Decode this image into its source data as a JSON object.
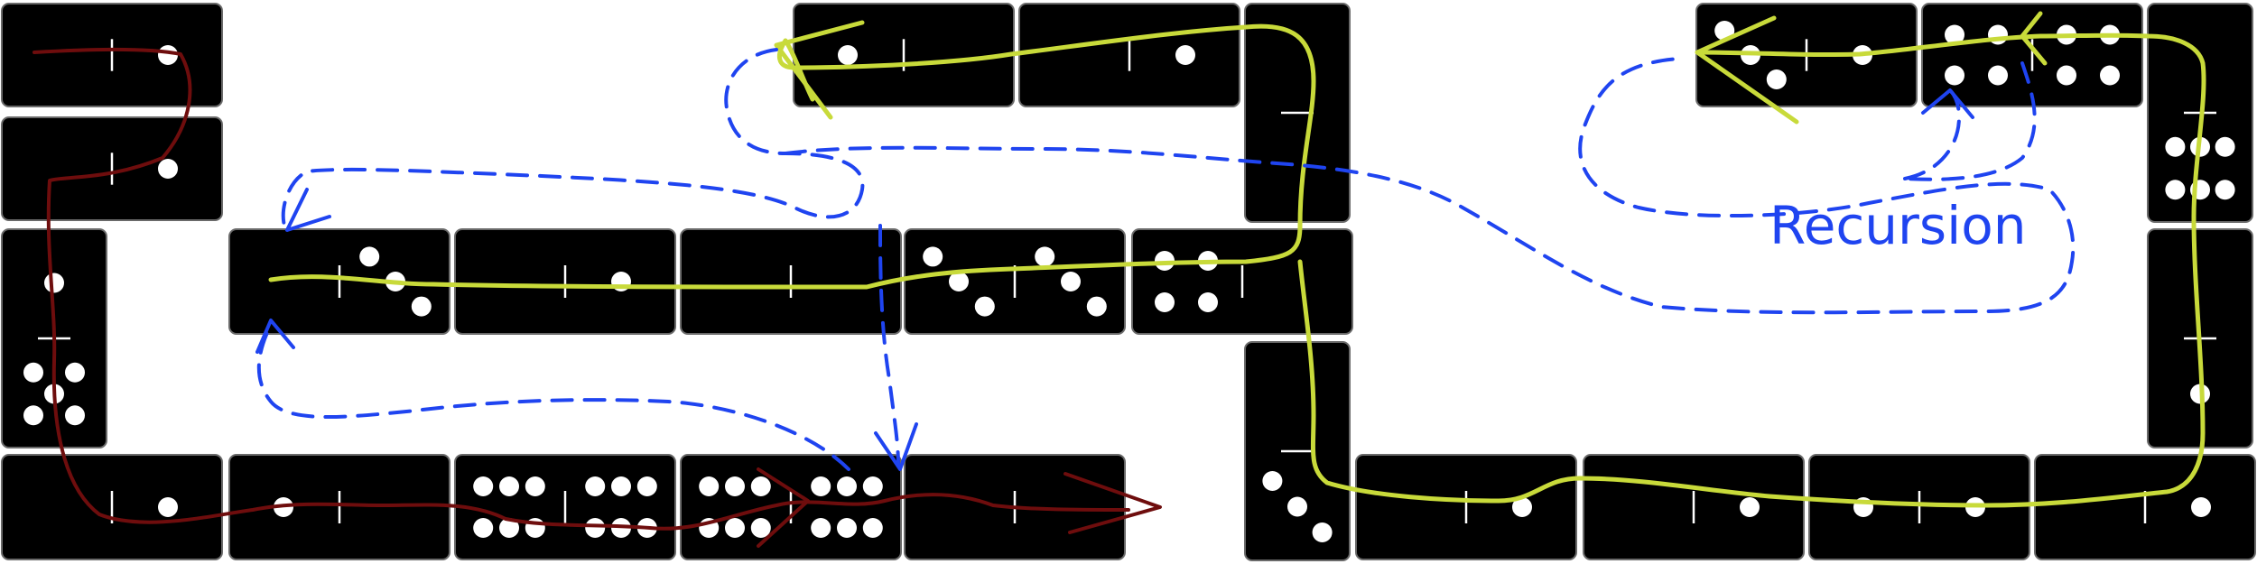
{
  "annotations": {
    "recursion_label": "Recursion"
  },
  "colors": {
    "domino": "#000000",
    "pip": "#ffffff",
    "green_path": "#c8da3a",
    "blue_path": "#1f44f0",
    "red_path": "#6e0d0d"
  },
  "dominoes": [
    {
      "id": "a1",
      "orientation": "h",
      "pips": [
        0,
        1
      ]
    },
    {
      "id": "a2",
      "orientation": "h",
      "pips": [
        0,
        1
      ]
    },
    {
      "id": "a3",
      "orientation": "v",
      "pips": [
        1,
        5
      ]
    },
    {
      "id": "a4",
      "orientation": "h",
      "pips": [
        0,
        1
      ]
    },
    {
      "id": "a5",
      "orientation": "h",
      "pips": [
        1,
        0
      ]
    },
    {
      "id": "a6",
      "orientation": "h",
      "pips": [
        6,
        6
      ]
    },
    {
      "id": "a7",
      "orientation": "h",
      "pips": [
        6,
        6
      ]
    },
    {
      "id": "a8",
      "orientation": "h",
      "pips": [
        0,
        0
      ]
    },
    {
      "id": "b1",
      "orientation": "h",
      "pips": [
        0,
        3
      ]
    },
    {
      "id": "b2",
      "orientation": "h",
      "pips": [
        0,
        1
      ]
    },
    {
      "id": "b3",
      "orientation": "h",
      "pips": [
        0,
        0
      ]
    },
    {
      "id": "b4",
      "orientation": "h",
      "pips": [
        3,
        3
      ]
    },
    {
      "id": "b5",
      "orientation": "h",
      "pips": [
        4,
        0
      ]
    },
    {
      "id": "c1",
      "orientation": "h",
      "pips": [
        1,
        0
      ]
    },
    {
      "id": "c2",
      "orientation": "h",
      "pips": [
        0,
        1
      ]
    },
    {
      "id": "c3",
      "orientation": "v",
      "pips": [
        0,
        0
      ]
    },
    {
      "id": "c4",
      "orientation": "v",
      "pips": [
        0,
        3
      ]
    },
    {
      "id": "c5",
      "orientation": "h",
      "pips": [
        0,
        1
      ]
    },
    {
      "id": "c6",
      "orientation": "h",
      "pips": [
        0,
        1
      ]
    },
    {
      "id": "c7",
      "orientation": "h",
      "pips": [
        1,
        1
      ]
    },
    {
      "id": "c8",
      "orientation": "h",
      "pips": [
        0,
        1
      ]
    },
    {
      "id": "d1",
      "orientation": "h",
      "pips": [
        3,
        1
      ]
    },
    {
      "id": "d2",
      "orientation": "h",
      "pips": [
        4,
        4
      ]
    },
    {
      "id": "d3",
      "orientation": "v",
      "pips": [
        0,
        6
      ]
    },
    {
      "id": "d4",
      "orientation": "v",
      "pips": [
        0,
        1
      ]
    }
  ]
}
